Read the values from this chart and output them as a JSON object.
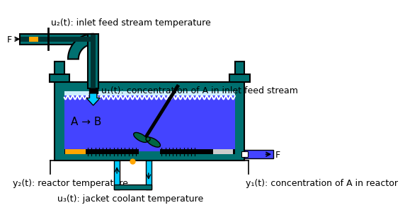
{
  "teal": "#007070",
  "teal_dark": "#005858",
  "blue_liquid": "#4444FF",
  "cyan_coolant": "#00CCFF",
  "black": "#000000",
  "white": "#FFFFFF",
  "orange": "#FFA500",
  "dark_green": "#006644",
  "gray_light": "#CCCCCC",
  "bg": "#FFFFFF",
  "label_u2": "u₂(t): inlet feed stream temperature",
  "label_u1": "u₁(t): concentration of A in inlet feed stream",
  "label_y2": "y₂(t): reactor temperature",
  "label_y1": "y₁(t): concentration of A in reactor",
  "label_u3": "u₃(t): jacket coolant temperature",
  "label_F_in": "F",
  "label_F_out": "F",
  "label_reaction": "A → B",
  "font_size": 9
}
